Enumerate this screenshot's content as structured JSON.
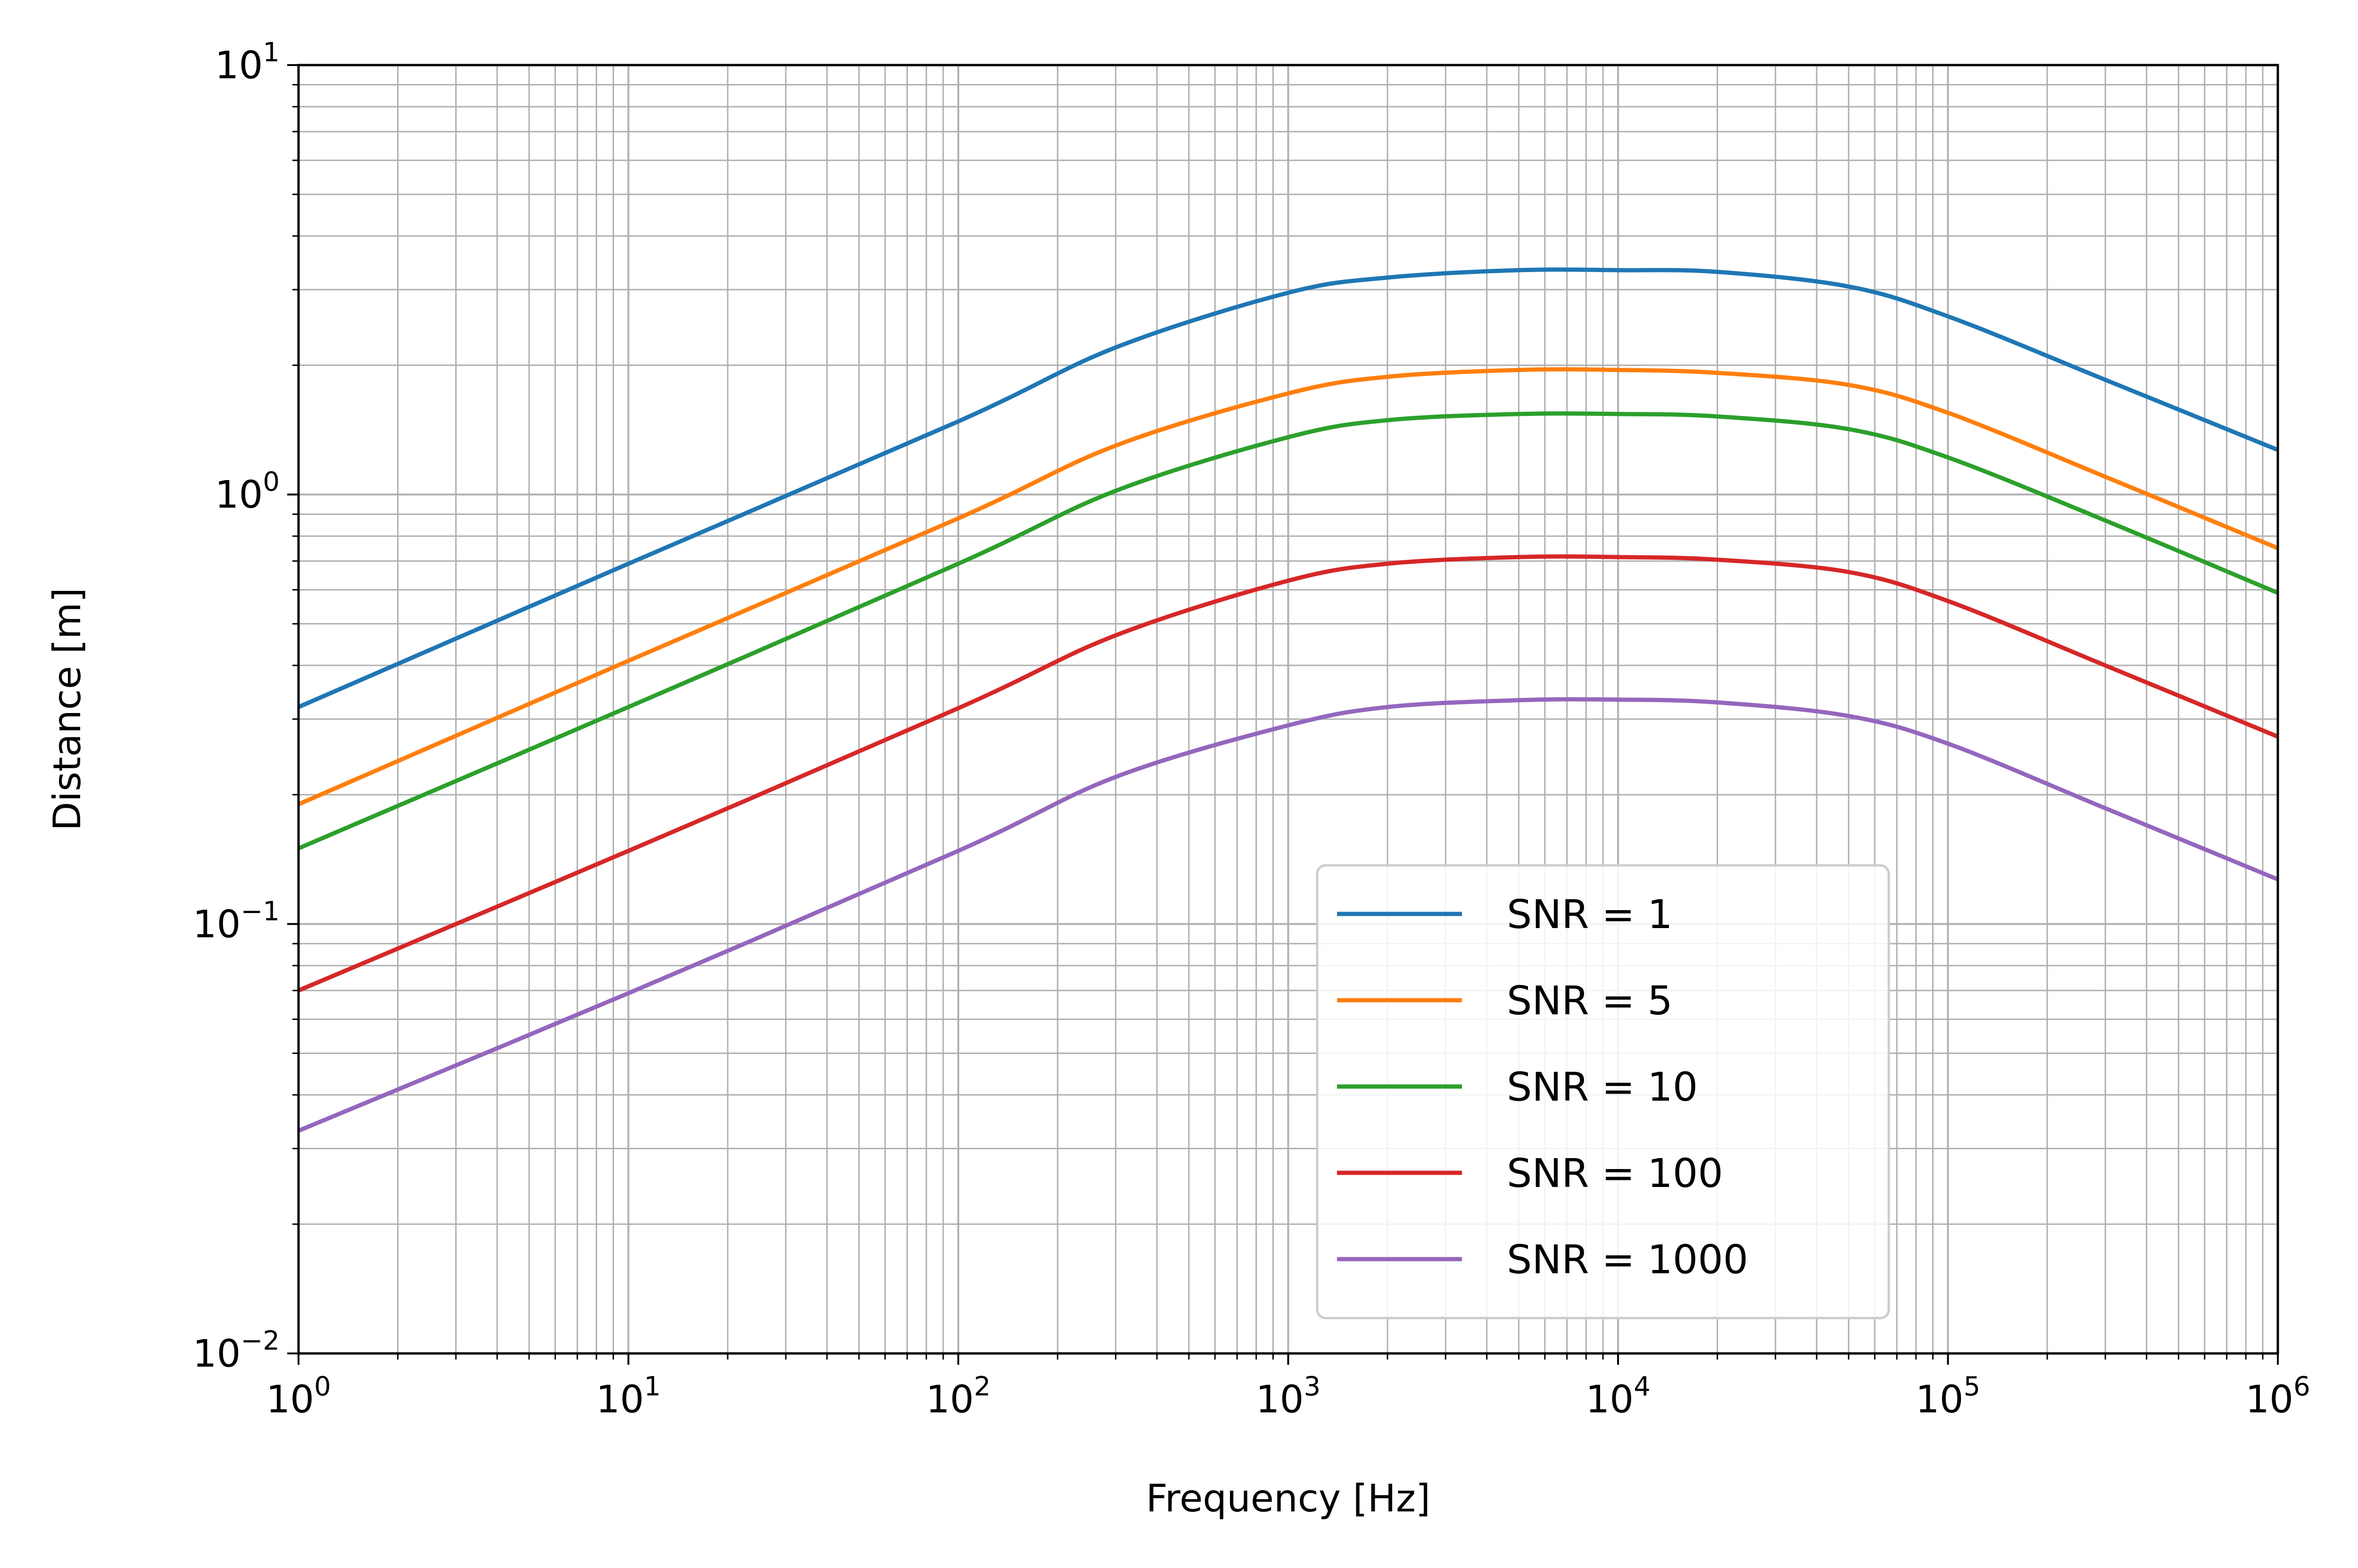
{
  "chart_data": {
    "type": "line",
    "title": "",
    "xlabel": "Frequency [Hz]",
    "ylabel": "Distance [m]",
    "xscale": "log",
    "yscale": "log",
    "xlim": [
      1,
      1000000
    ],
    "ylim": [
      0.01,
      10
    ],
    "grid": true,
    "legend_position": "lower-right",
    "x_ticks": [
      {
        "base": "10",
        "exp": "0"
      },
      {
        "base": "10",
        "exp": "1"
      },
      {
        "base": "10",
        "exp": "2"
      },
      {
        "base": "10",
        "exp": "3"
      },
      {
        "base": "10",
        "exp": "4"
      },
      {
        "base": "10",
        "exp": "5"
      },
      {
        "base": "10",
        "exp": "6"
      }
    ],
    "y_ticks": [
      {
        "base": "10",
        "exp": "−2"
      },
      {
        "base": "10",
        "exp": "−1"
      },
      {
        "base": "10",
        "exp": "0"
      },
      {
        "base": "10",
        "exp": "1"
      }
    ],
    "x": [
      1,
      10,
      100,
      300,
      1000,
      2000,
      5000,
      10000,
      20000,
      50000,
      100000,
      300000,
      1000000
    ],
    "series": [
      {
        "name": "SNR = 1",
        "color": "#1f77b4",
        "values": [
          0.32,
          0.69,
          1.48,
          2.2,
          2.95,
          3.2,
          3.33,
          3.33,
          3.3,
          3.05,
          2.6,
          1.85,
          1.27
        ]
      },
      {
        "name": "SNR = 5",
        "color": "#ff7f0e",
        "values": [
          0.19,
          0.41,
          0.88,
          1.3,
          1.72,
          1.88,
          1.95,
          1.95,
          1.92,
          1.8,
          1.55,
          1.1,
          0.75
        ]
      },
      {
        "name": "SNR = 10",
        "color": "#2ca02c",
        "values": [
          0.15,
          0.32,
          0.69,
          1.02,
          1.36,
          1.49,
          1.54,
          1.54,
          1.52,
          1.42,
          1.22,
          0.87,
          0.59
        ]
      },
      {
        "name": "SNR = 100",
        "color": "#d62728",
        "values": [
          0.07,
          0.148,
          0.318,
          0.47,
          0.63,
          0.69,
          0.715,
          0.715,
          0.705,
          0.66,
          0.565,
          0.4,
          0.273
        ]
      },
      {
        "name": "SNR = 1000",
        "color": "#9467bd",
        "values": [
          0.033,
          0.069,
          0.148,
          0.22,
          0.29,
          0.32,
          0.332,
          0.333,
          0.328,
          0.305,
          0.263,
          0.186,
          0.127
        ]
      }
    ]
  }
}
